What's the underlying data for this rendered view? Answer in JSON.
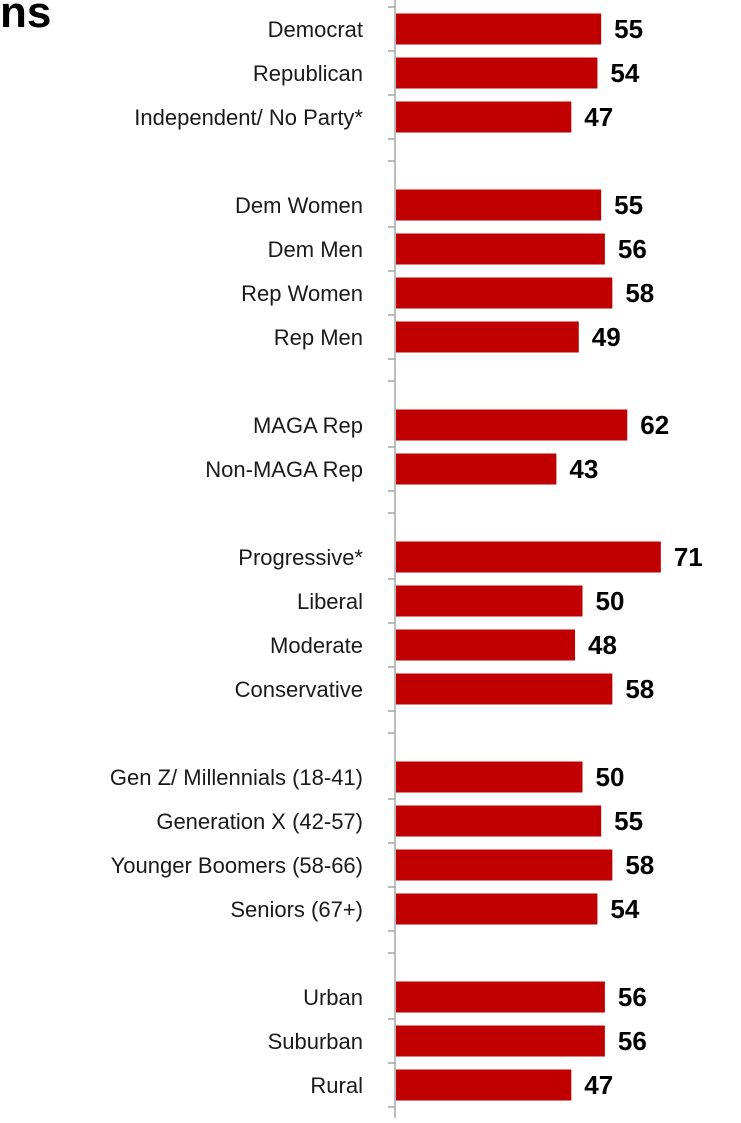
{
  "title_fragment": "ns",
  "chart_data": {
    "type": "bar",
    "orientation": "horizontal",
    "title": "ns",
    "xlabel": "",
    "ylabel": "",
    "xlim": [
      0,
      100
    ],
    "grid": false,
    "legend": "none",
    "bar_color": "#c00000",
    "axis_color": "#a6a6a6",
    "groups": [
      {
        "items": [
          {
            "category": "Democrat",
            "value": 55
          },
          {
            "category": "Republican",
            "value": 54
          },
          {
            "category": "Independent/ No Party*",
            "value": 47
          }
        ]
      },
      {
        "items": [
          {
            "category": "Dem Women",
            "value": 55
          },
          {
            "category": "Dem Men",
            "value": 56
          },
          {
            "category": "Rep Women",
            "value": 58
          },
          {
            "category": "Rep Men",
            "value": 49
          }
        ]
      },
      {
        "items": [
          {
            "category": "MAGA Rep",
            "value": 62
          },
          {
            "category": "Non-MAGA Rep",
            "value": 43
          }
        ]
      },
      {
        "items": [
          {
            "category": "Progressive*",
            "value": 71
          },
          {
            "category": "Liberal",
            "value": 50
          },
          {
            "category": "Moderate",
            "value": 48
          },
          {
            "category": "Conservative",
            "value": 58
          }
        ]
      },
      {
        "items": [
          {
            "category": "Gen Z/ Millennials (18-41)",
            "value": 50
          },
          {
            "category": "Generation X (42-57)",
            "value": 55
          },
          {
            "category": "Younger Boomers (58-66)",
            "value": 58
          },
          {
            "category": "Seniors (67+)",
            "value": 54
          }
        ]
      },
      {
        "items": [
          {
            "category": "Urban",
            "value": 56
          },
          {
            "category": "Suburban",
            "value": 56
          },
          {
            "category": "Rural",
            "value": 47
          }
        ]
      }
    ]
  }
}
